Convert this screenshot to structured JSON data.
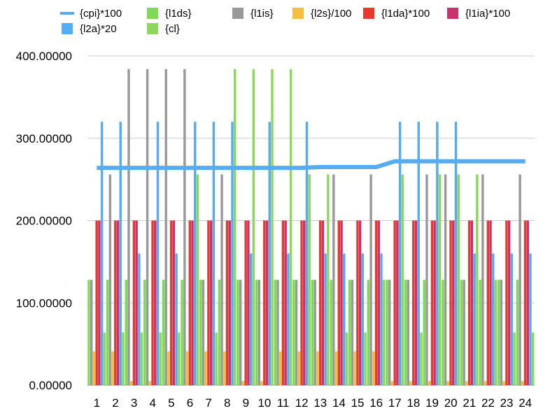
{
  "chart_data": {
    "type": "bar",
    "title": "",
    "xlabel": "",
    "ylabel": "",
    "ylim": [
      0,
      400
    ],
    "y_ticks": [
      "0.00000",
      "100.00000",
      "200.00000",
      "300.00000",
      "400.00000"
    ],
    "categories": [
      "1",
      "2",
      "3",
      "4",
      "5",
      "6",
      "7",
      "8",
      "9",
      "10",
      "11",
      "12",
      "13",
      "14",
      "15",
      "16",
      "17",
      "18",
      "19",
      "20",
      "21",
      "22",
      "23",
      "24"
    ],
    "grid": "horizontal",
    "legend_position": "top",
    "series": [
      {
        "name": "{l1ds}",
        "color": "#7ED957",
        "values": [
          128,
          128,
          128,
          128,
          128,
          128,
          128,
          128,
          128,
          128,
          128,
          128,
          128,
          128,
          128,
          128,
          128,
          128,
          128,
          128,
          128,
          128,
          128,
          128
        ]
      },
      {
        "name": "{l1is}",
        "color": "#999999",
        "values": [
          128,
          256,
          384,
          384,
          384,
          384,
          128,
          256,
          128,
          128,
          128,
          128,
          128,
          256,
          128,
          256,
          128,
          128,
          256,
          256,
          128,
          256,
          128,
          256
        ]
      },
      {
        "name": "{l2s}/100",
        "color": "#F7BD43",
        "values": [
          41,
          41,
          5,
          5,
          41,
          41,
          41,
          41,
          5,
          5,
          41,
          41,
          41,
          41,
          41,
          41,
          5,
          5,
          5,
          5,
          5,
          5,
          5,
          5
        ]
      },
      {
        "name": "{l1da}*100",
        "color": "#E8392C",
        "values": [
          200,
          200,
          200,
          200,
          200,
          200,
          200,
          200,
          200,
          200,
          200,
          200,
          200,
          200,
          200,
          200,
          200,
          200,
          200,
          200,
          200,
          200,
          200,
          200
        ]
      },
      {
        "name": "{l1ia}*100",
        "color": "#C8336F",
        "values": [
          200,
          200,
          200,
          200,
          200,
          200,
          200,
          200,
          200,
          200,
          200,
          200,
          200,
          200,
          200,
          200,
          200,
          200,
          200,
          200,
          200,
          200,
          200,
          200
        ]
      },
      {
        "name": "{l2a}*20",
        "color": "#55ACF0",
        "values": [
          320,
          320,
          160,
          320,
          160,
          320,
          320,
          320,
          160,
          320,
          160,
          320,
          160,
          160,
          160,
          160,
          320,
          320,
          320,
          320,
          160,
          160,
          160,
          160
        ]
      },
      {
        "name": "{cl}",
        "color": "#8FD65E",
        "values": [
          64,
          64,
          64,
          64,
          64,
          256,
          64,
          384,
          384,
          384,
          384,
          256,
          256,
          64,
          64,
          128,
          256,
          64,
          256,
          256,
          256,
          128,
          64,
          64
        ]
      }
    ],
    "line": {
      "name": "{cpi}*100",
      "color": "#55ACF0",
      "values": [
        264,
        264,
        264,
        264,
        264,
        264,
        264,
        264,
        264,
        264,
        264,
        264,
        265,
        265,
        265,
        265,
        272,
        272,
        272,
        272,
        272,
        272,
        272,
        272
      ]
    }
  }
}
